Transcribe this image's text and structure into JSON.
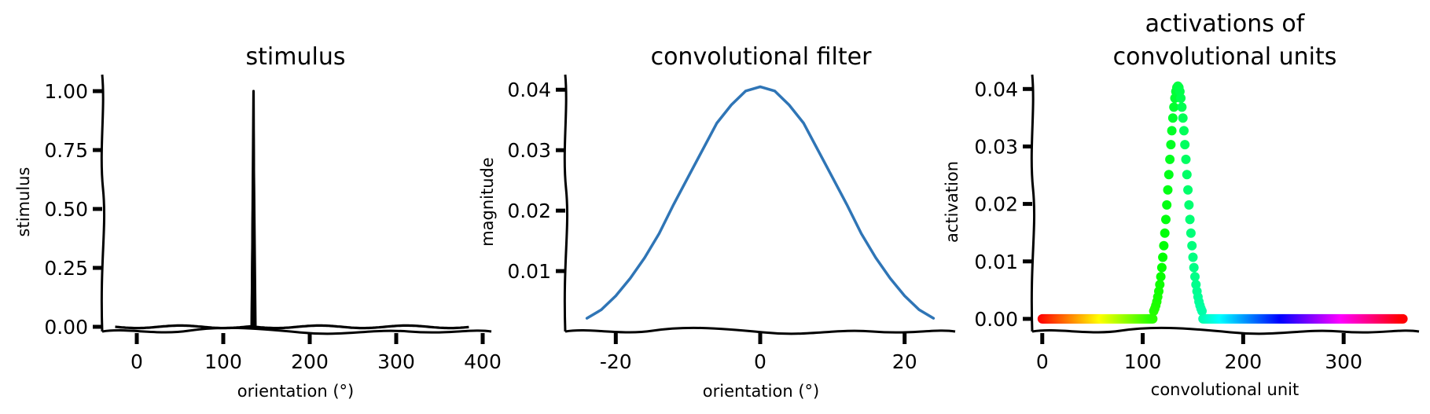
{
  "chart_data": [
    {
      "type": "line",
      "title": "stimulus",
      "xlabel": "orientation (°)",
      "ylabel": "stimulus",
      "xlim": [
        -40,
        410
      ],
      "ylim": [
        -0.02,
        1.07
      ],
      "xticks": [
        0,
        100,
        200,
        300,
        400
      ],
      "yticks": [
        0.0,
        0.25,
        0.5,
        0.75,
        1.0
      ],
      "ytick_labels": [
        "0.00",
        "0.25",
        "0.50",
        "0.75",
        "1.00"
      ],
      "grid": false,
      "series": [
        {
          "x": [
            -25,
            134,
            135,
            136,
            385
          ],
          "y": [
            0,
            0,
            1,
            0,
            0
          ],
          "color": "#000000"
        }
      ]
    },
    {
      "type": "line",
      "title": "convolutional filter",
      "xlabel": "orientation (°)",
      "ylabel": "magnitude",
      "xlim": [
        -27,
        27
      ],
      "ylim": [
        0.0,
        0.0425
      ],
      "xticks": [
        -20,
        0,
        20
      ],
      "yticks": [
        0.01,
        0.02,
        0.03,
        0.04
      ],
      "ytick_labels": [
        "0.01",
        "0.02",
        "0.03",
        "0.04"
      ],
      "grid": false,
      "series": [
        {
          "color": "#2f75b6",
          "x": [
            -24,
            -22,
            -20,
            -18,
            -16,
            -14,
            -12,
            -10,
            -8,
            -6,
            -4,
            -2,
            0,
            2,
            4,
            6,
            8,
            10,
            12,
            14,
            16,
            18,
            20,
            22,
            24
          ],
          "y": [
            0.0022,
            0.0036,
            0.0059,
            0.0088,
            0.0122,
            0.0162,
            0.021,
            0.0255,
            0.03,
            0.0345,
            0.0375,
            0.0398,
            0.0405,
            0.0398,
            0.0375,
            0.0345,
            0.03,
            0.0255,
            0.021,
            0.0162,
            0.0122,
            0.0088,
            0.0059,
            0.0036,
            0.0022
          ]
        }
      ]
    },
    {
      "type": "scatter",
      "title": "activations of convolutional units",
      "title_lines": [
        "activations of",
        "convolutional units"
      ],
      "xlabel": "convolutional unit",
      "ylabel": "activation",
      "xlim": [
        -10,
        375
      ],
      "ylim": [
        -0.0022,
        0.0425
      ],
      "xticks": [
        0,
        100,
        200,
        300
      ],
      "yticks": [
        0.0,
        0.01,
        0.02,
        0.03,
        0.04
      ],
      "ytick_labels": [
        "0.00",
        "0.01",
        "0.02",
        "0.03",
        "0.04"
      ],
      "grid": false,
      "colormap": "hsv by unit index (0 = red, 360 = red)",
      "series": [
        {
          "x_range": [
            0,
            359
          ],
          "y": "zero for units 0-110 and 160-359; filter profile centred at unit 135 (peak 0.0405) for units 111-159"
        }
      ]
    }
  ]
}
